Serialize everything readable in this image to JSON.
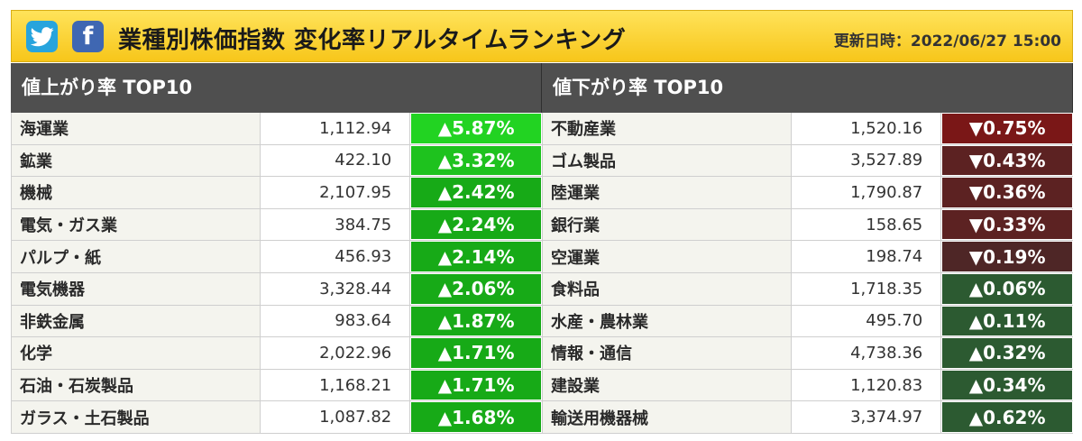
{
  "header": {
    "title": "業種別株価指数 変化率リアルタイムランキング",
    "updated": "更新日時：2022/06/27 15:00",
    "twitter_icon": "twitter-bird",
    "facebook_icon": "facebook-f",
    "facebook_letter": "f"
  },
  "gainers": {
    "title": "値上がり率 TOP10",
    "rows": [
      {
        "name": "海運業",
        "price": "1,112.94",
        "change": "▲5.87%",
        "color": "#22d322"
      },
      {
        "name": "鉱業",
        "price": "422.10",
        "change": "▲3.32%",
        "color": "#1ec21e"
      },
      {
        "name": "機械",
        "price": "2,107.95",
        "change": "▲2.42%",
        "color": "#17aa17"
      },
      {
        "name": "電気・ガス業",
        "price": "384.75",
        "change": "▲2.24%",
        "color": "#17aa17"
      },
      {
        "name": "パルプ・紙",
        "price": "456.93",
        "change": "▲2.14%",
        "color": "#17aa17"
      },
      {
        "name": "電気機器",
        "price": "3,328.44",
        "change": "▲2.06%",
        "color": "#17aa17"
      },
      {
        "name": "非鉄金属",
        "price": "983.64",
        "change": "▲1.87%",
        "color": "#17aa17"
      },
      {
        "name": "化学",
        "price": "2,022.96",
        "change": "▲1.71%",
        "color": "#17aa17"
      },
      {
        "name": "石油・石炭製品",
        "price": "1,168.21",
        "change": "▲1.71%",
        "color": "#17aa17"
      },
      {
        "name": "ガラス・土石製品",
        "price": "1,087.82",
        "change": "▲1.68%",
        "color": "#17aa17"
      }
    ]
  },
  "losers": {
    "title": "値下がり率 TOP10",
    "rows": [
      {
        "name": "不動産業",
        "price": "1,520.16",
        "change": "▼0.75%",
        "color": "#7a1717"
      },
      {
        "name": "ゴム製品",
        "price": "3,527.89",
        "change": "▼0.43%",
        "color": "#5c2222"
      },
      {
        "name": "陸運業",
        "price": "1,790.87",
        "change": "▼0.36%",
        "color": "#5c2222"
      },
      {
        "name": "銀行業",
        "price": "158.65",
        "change": "▼0.33%",
        "color": "#5c2222"
      },
      {
        "name": "空運業",
        "price": "198.74",
        "change": "▼0.19%",
        "color": "#4e2626"
      },
      {
        "name": "食料品",
        "price": "1,718.35",
        "change": "▲0.06%",
        "color": "#2c5a31"
      },
      {
        "name": "水産・農林業",
        "price": "495.70",
        "change": "▲0.11%",
        "color": "#2c5a31"
      },
      {
        "name": "情報・通信",
        "price": "4,738.36",
        "change": "▲0.32%",
        "color": "#2c5a31"
      },
      {
        "name": "建設業",
        "price": "1,120.83",
        "change": "▲0.34%",
        "color": "#2c5a31"
      },
      {
        "name": "輸送用機器械",
        "price": "3,374.97",
        "change": "▲0.62%",
        "color": "#2c5a31"
      }
    ]
  }
}
